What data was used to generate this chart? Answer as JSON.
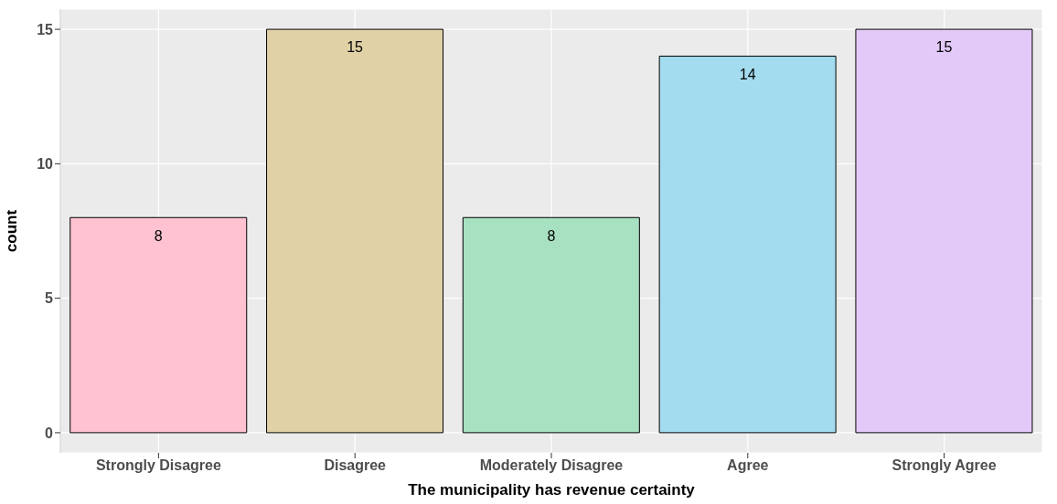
{
  "chart_data": {
    "type": "bar",
    "xlabel": "The municipality has revenue certainty",
    "ylabel": "count",
    "categories": [
      "Strongly Disagree",
      "Disagree",
      "Moderately Disagree",
      "Agree",
      "Strongly Agree"
    ],
    "values": [
      8,
      15,
      8,
      14,
      15
    ],
    "colors": [
      "#ffc2d1",
      "#e0d1a6",
      "#a8e0c2",
      "#a3dcef",
      "#e3c9f8"
    ],
    "ylim": [
      -0.75,
      15.75
    ],
    "yticks": [
      0,
      5,
      10,
      15
    ],
    "grid": true,
    "data_labels": true,
    "legend": false
  }
}
